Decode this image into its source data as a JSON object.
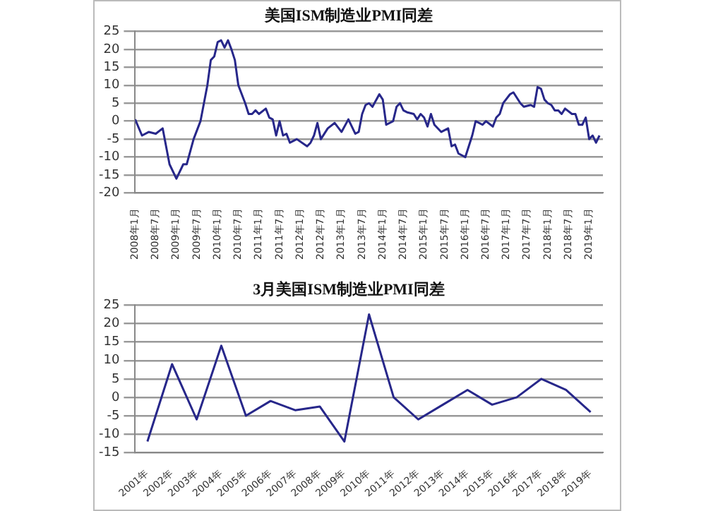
{
  "chart_data": [
    {
      "type": "line",
      "title": "美国ISM制造业PMI同差",
      "color": "#27278a",
      "marker": "none",
      "grid": "y",
      "x": [
        "2008-01",
        "2008-03",
        "2008-05",
        "2008-07",
        "2008-09",
        "2008-11",
        "2009-01",
        "2009-03",
        "2009-04",
        "2009-06",
        "2009-08",
        "2009-09",
        "2009-10",
        "2009-11",
        "2009-12",
        "2010-01",
        "2010-02",
        "2010-03",
        "2010-04",
        "2010-05",
        "2010-06",
        "2010-07",
        "2010-09",
        "2010-10",
        "2010-11",
        "2010-12",
        "2011-01",
        "2011-03",
        "2011-04",
        "2011-05",
        "2011-06",
        "2011-07",
        "2011-08",
        "2011-09",
        "2011-10",
        "2011-12",
        "2012-03",
        "2012-04",
        "2012-05",
        "2012-06",
        "2012-07",
        "2012-09",
        "2012-11",
        "2013-01",
        "2013-03",
        "2013-05",
        "2013-06",
        "2013-07",
        "2013-08",
        "2013-09",
        "2013-10",
        "2013-12",
        "2014-01",
        "2014-02",
        "2014-04",
        "2014-05",
        "2014-06",
        "2014-07",
        "2014-08",
        "2014-10",
        "2014-11",
        "2014-12",
        "2015-01",
        "2015-02",
        "2015-03",
        "2015-04",
        "2015-06",
        "2015-08",
        "2015-09",
        "2015-10",
        "2015-11",
        "2016-01",
        "2016-02",
        "2016-03",
        "2016-04",
        "2016-06",
        "2016-07",
        "2016-09",
        "2016-10",
        "2016-11",
        "2016-12",
        "2017-02",
        "2017-03",
        "2017-05",
        "2017-06",
        "2017-08",
        "2017-09",
        "2017-10",
        "2017-11",
        "2017-12",
        "2018-01",
        "2018-02",
        "2018-03",
        "2018-04",
        "2018-05",
        "2018-06",
        "2018-08",
        "2018-09",
        "2018-10",
        "2018-11",
        "2018-12",
        "2019-01",
        "2019-02",
        "2019-03",
        "2019-04"
      ],
      "values": [
        0.5,
        -4,
        -3,
        -3.5,
        -2,
        -12,
        -16,
        -12,
        -12,
        -5,
        0,
        5,
        10,
        17,
        18,
        22,
        22.5,
        20.5,
        22.5,
        20,
        17,
        10,
        5,
        2,
        2,
        3,
        2,
        3.5,
        1,
        0.5,
        -4,
        0,
        -4,
        -3.5,
        -6,
        -5,
        -7,
        -6,
        -4,
        -0.5,
        -5,
        -2,
        -0.5,
        -3,
        0.5,
        -3.5,
        -3,
        2,
        4.5,
        5,
        4,
        7.5,
        6,
        -1,
        0,
        4,
        5,
        3,
        2.5,
        2,
        0.5,
        2,
        1,
        -1.5,
        2,
        -1,
        -3,
        -2,
        -7,
        -6.5,
        -9,
        -10,
        -7,
        -4,
        0,
        -1,
        0,
        -1.5,
        1,
        2,
        5,
        7.5,
        8,
        5,
        4,
        4.5,
        4,
        9.5,
        9,
        6,
        5,
        4.5,
        3,
        3,
        2,
        3.5,
        2,
        2,
        -1,
        -1,
        1,
        -5,
        -4,
        -6,
        -4
      ],
      "xlim": [
        "2008-01",
        "2019-05"
      ],
      "xticks": [
        {
          "value": "2008-01",
          "label": "2008年1月"
        },
        {
          "value": "2008-07",
          "label": "2008年7月"
        },
        {
          "value": "2009-01",
          "label": "2009年1月"
        },
        {
          "value": "2009-07",
          "label": "2009年7月"
        },
        {
          "value": "2010-01",
          "label": "2010年1月"
        },
        {
          "value": "2010-07",
          "label": "2010年7月"
        },
        {
          "value": "2011-01",
          "label": "2011年1月"
        },
        {
          "value": "2011-07",
          "label": "2011年7月"
        },
        {
          "value": "2012-01",
          "label": "2012年1月"
        },
        {
          "value": "2012-07",
          "label": "2012年7月"
        },
        {
          "value": "2013-01",
          "label": "2013年1月"
        },
        {
          "value": "2013-07",
          "label": "2013年7月"
        },
        {
          "value": "2014-01",
          "label": "2014年1月"
        },
        {
          "value": "2014-07",
          "label": "2014年7月"
        },
        {
          "value": "2015-01",
          "label": "2015年1月"
        },
        {
          "value": "2015-07",
          "label": "2015年7月"
        },
        {
          "value": "2016-01",
          "label": "2016年1月"
        },
        {
          "value": "2016-07",
          "label": "2016年7月"
        },
        {
          "value": "2017-01",
          "label": "2017年1月"
        },
        {
          "value": "2017-07",
          "label": "2017年7月"
        },
        {
          "value": "2018-01",
          "label": "2018年1月"
        },
        {
          "value": "2018-07",
          "label": "2018年7月"
        },
        {
          "value": "2019-01",
          "label": "2019年1月"
        }
      ],
      "ylim": [
        -20,
        25
      ],
      "yticks": [
        -20,
        -15,
        -10,
        -5,
        0,
        5,
        10,
        15,
        20,
        25
      ]
    },
    {
      "type": "line",
      "title": "3月美国ISM制造业PMI同差",
      "color": "#27278a",
      "marker": "none",
      "grid": "y",
      "categories": [
        "2001年",
        "2002年",
        "2003年",
        "2004年",
        "2005年",
        "2006年",
        "2007年",
        "2008年",
        "2009年",
        "2010年",
        "2011年",
        "2012年",
        "2013年",
        "2014年",
        "2015年",
        "2016年",
        "2017年",
        "2018年",
        "2019年"
      ],
      "values": [
        -12,
        9,
        -6,
        14,
        -5,
        -1,
        -3.5,
        -2.5,
        -12,
        22.5,
        0,
        -6,
        -2,
        2,
        -2,
        0,
        5,
        2,
        -4
      ],
      "ylim": [
        -15,
        25
      ],
      "yticks": [
        -15,
        -10,
        -5,
        0,
        5,
        10,
        15,
        20,
        25
      ]
    }
  ]
}
